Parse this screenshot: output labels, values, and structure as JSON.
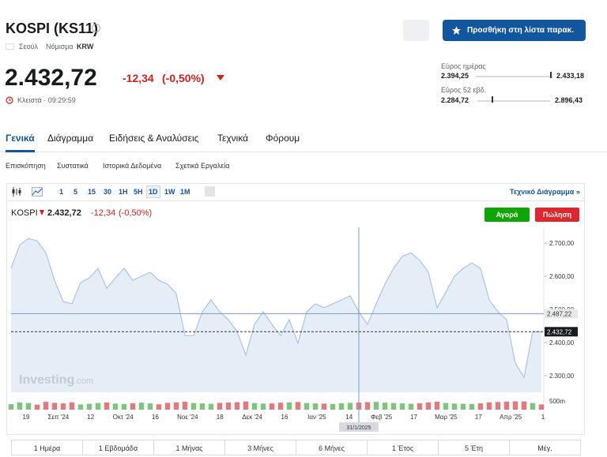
{
  "header": {
    "title": "KOSPI (KS11)",
    "city": "Σεούλ",
    "currency_label": "Νόμισμα",
    "currency": "KRW",
    "price": "2.432,72",
    "change": "-12,34",
    "change_pct": "(-0,50%)",
    "status": "Κλειστά · 09:29:59",
    "watchlist_button": "Προσθήκη στη λίστα παρακ.",
    "day_range_label": "Εύρος ημέρας",
    "day_low": "2.394,25",
    "day_high": "2.433,18",
    "week52_label": "Εύρος 52 εβδ.",
    "week52_low": "2.284,72",
    "week52_high": "2.896,43"
  },
  "tabs": [
    "Γενικά",
    "Διάγραμμα",
    "Ειδήσεις & Αναλύσεις",
    "Τεχνικά",
    "Φόρουμ"
  ],
  "subtabs": [
    "Επισκόπηση",
    "Συστατικά",
    "Ιστορικά Δεδομένα",
    "Σχετικά Εργαλεία"
  ],
  "intervals": [
    "1",
    "5",
    "15",
    "30",
    "1H",
    "5H",
    "1D",
    "1W",
    "1M"
  ],
  "technical_link": "Τεχνικό Διάγραμμα »",
  "chart": {
    "type": "area",
    "name": "KOSPI",
    "buy": "Αγορά",
    "sell": "Πώληση",
    "watermark": "Investing",
    "watermark_suffix": ".com",
    "values": [
      2624,
      2695,
      2714,
      2707,
      2671,
      2588,
      2524,
      2517,
      2581,
      2595,
      2624,
      2564,
      2595,
      2624,
      2588,
      2600,
      2612,
      2588,
      2576,
      2548,
      2421,
      2421,
      2493,
      2529,
      2493,
      2469,
      2433,
      2362,
      2455,
      2493,
      2455,
      2421,
      2469,
      2398,
      2493,
      2517,
      2505,
      2517,
      2529,
      2541,
      2493,
      2455,
      2517,
      2576,
      2624,
      2660,
      2671,
      2648,
      2612,
      2505,
      2552,
      2600,
      2624,
      2640,
      2624,
      2529,
      2493,
      2469,
      2338,
      2295,
      2433,
      2432.72
    ],
    "volume": [
      320,
      410,
      380,
      290,
      450,
      390,
      360,
      420,
      300,
      340,
      380,
      410,
      350,
      330,
      370,
      400,
      360,
      310,
      390,
      420,
      450,
      380,
      360,
      340,
      390,
      410,
      430,
      470,
      380,
      350,
      360,
      400,
      420,
      440,
      380,
      360,
      350,
      330,
      370,
      390,
      410,
      430,
      450,
      400,
      380,
      360,
      340,
      370,
      420,
      460,
      380,
      350,
      340,
      330,
      360,
      420,
      440,
      460,
      480,
      470,
      380,
      300
    ],
    "ylim": [
      2250,
      2743
    ],
    "yticks": [
      {
        "value": 2700,
        "label": "2.700,00"
      },
      {
        "value": 2600,
        "label": "2.600,00"
      },
      {
        "value": 2500,
        "label": "2.500,00"
      },
      {
        "value": 2400,
        "label": "2.400,00"
      },
      {
        "value": 2300,
        "label": "2.300,00"
      }
    ],
    "vlim": [
      0,
      500
    ],
    "vticks": [
      {
        "value": 500,
        "label": "500m"
      }
    ],
    "crosshair": {
      "value": 2487.22,
      "label": "2.487,22",
      "date": "31/1/2025"
    },
    "x_labels": [
      "19",
      "Σεπ '24",
      "12",
      "Οκτ '24",
      "16",
      "Νοε '24",
      "18",
      "Δεκ '24",
      "16",
      "Ιαν '25",
      "14",
      "Φεβ '25",
      "17",
      "Μαρ '25",
      "17",
      "Απρ '25",
      "1"
    ]
  },
  "ranges": [
    "1 Ημέρα",
    "1 Εβδομάδα",
    "1 Μήνας",
    "3 Μήνες",
    "6 Μήνες",
    "1 Έτος",
    "5 Έτη",
    "Μέγ."
  ]
}
